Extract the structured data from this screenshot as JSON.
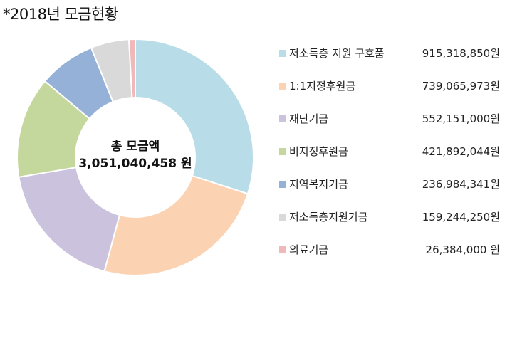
{
  "title": "*2018년 모금현황",
  "center": {
    "line1": "총 모금액",
    "line2": "3,051,040,458 원"
  },
  "chart_data": {
    "type": "pie",
    "title": "*2018년 모금현황",
    "legend_position": "right",
    "categories": [
      "저소득층 지원 구호품",
      "1:1지정후원금",
      "재단기금",
      "비지정후원금",
      "지역복지기금",
      "저소득층지원기금",
      "의료기금"
    ],
    "values": [
      915318850,
      739065973,
      552151000,
      421892044,
      236984341,
      159244250,
      26384000
    ],
    "value_labels": [
      "915,318,850원",
      "739,065,973원",
      "552,151,000원",
      "421,892,044원",
      "236,984,341원",
      "159,244,250원",
      "26,384,000 원"
    ],
    "colors": [
      "#b8dde8",
      "#fbd3b3",
      "#cbc2de",
      "#c4d89e",
      "#96b1d7",
      "#d9d9d9",
      "#f0b8b8"
    ],
    "total_label": "3,051,040,458 원"
  }
}
